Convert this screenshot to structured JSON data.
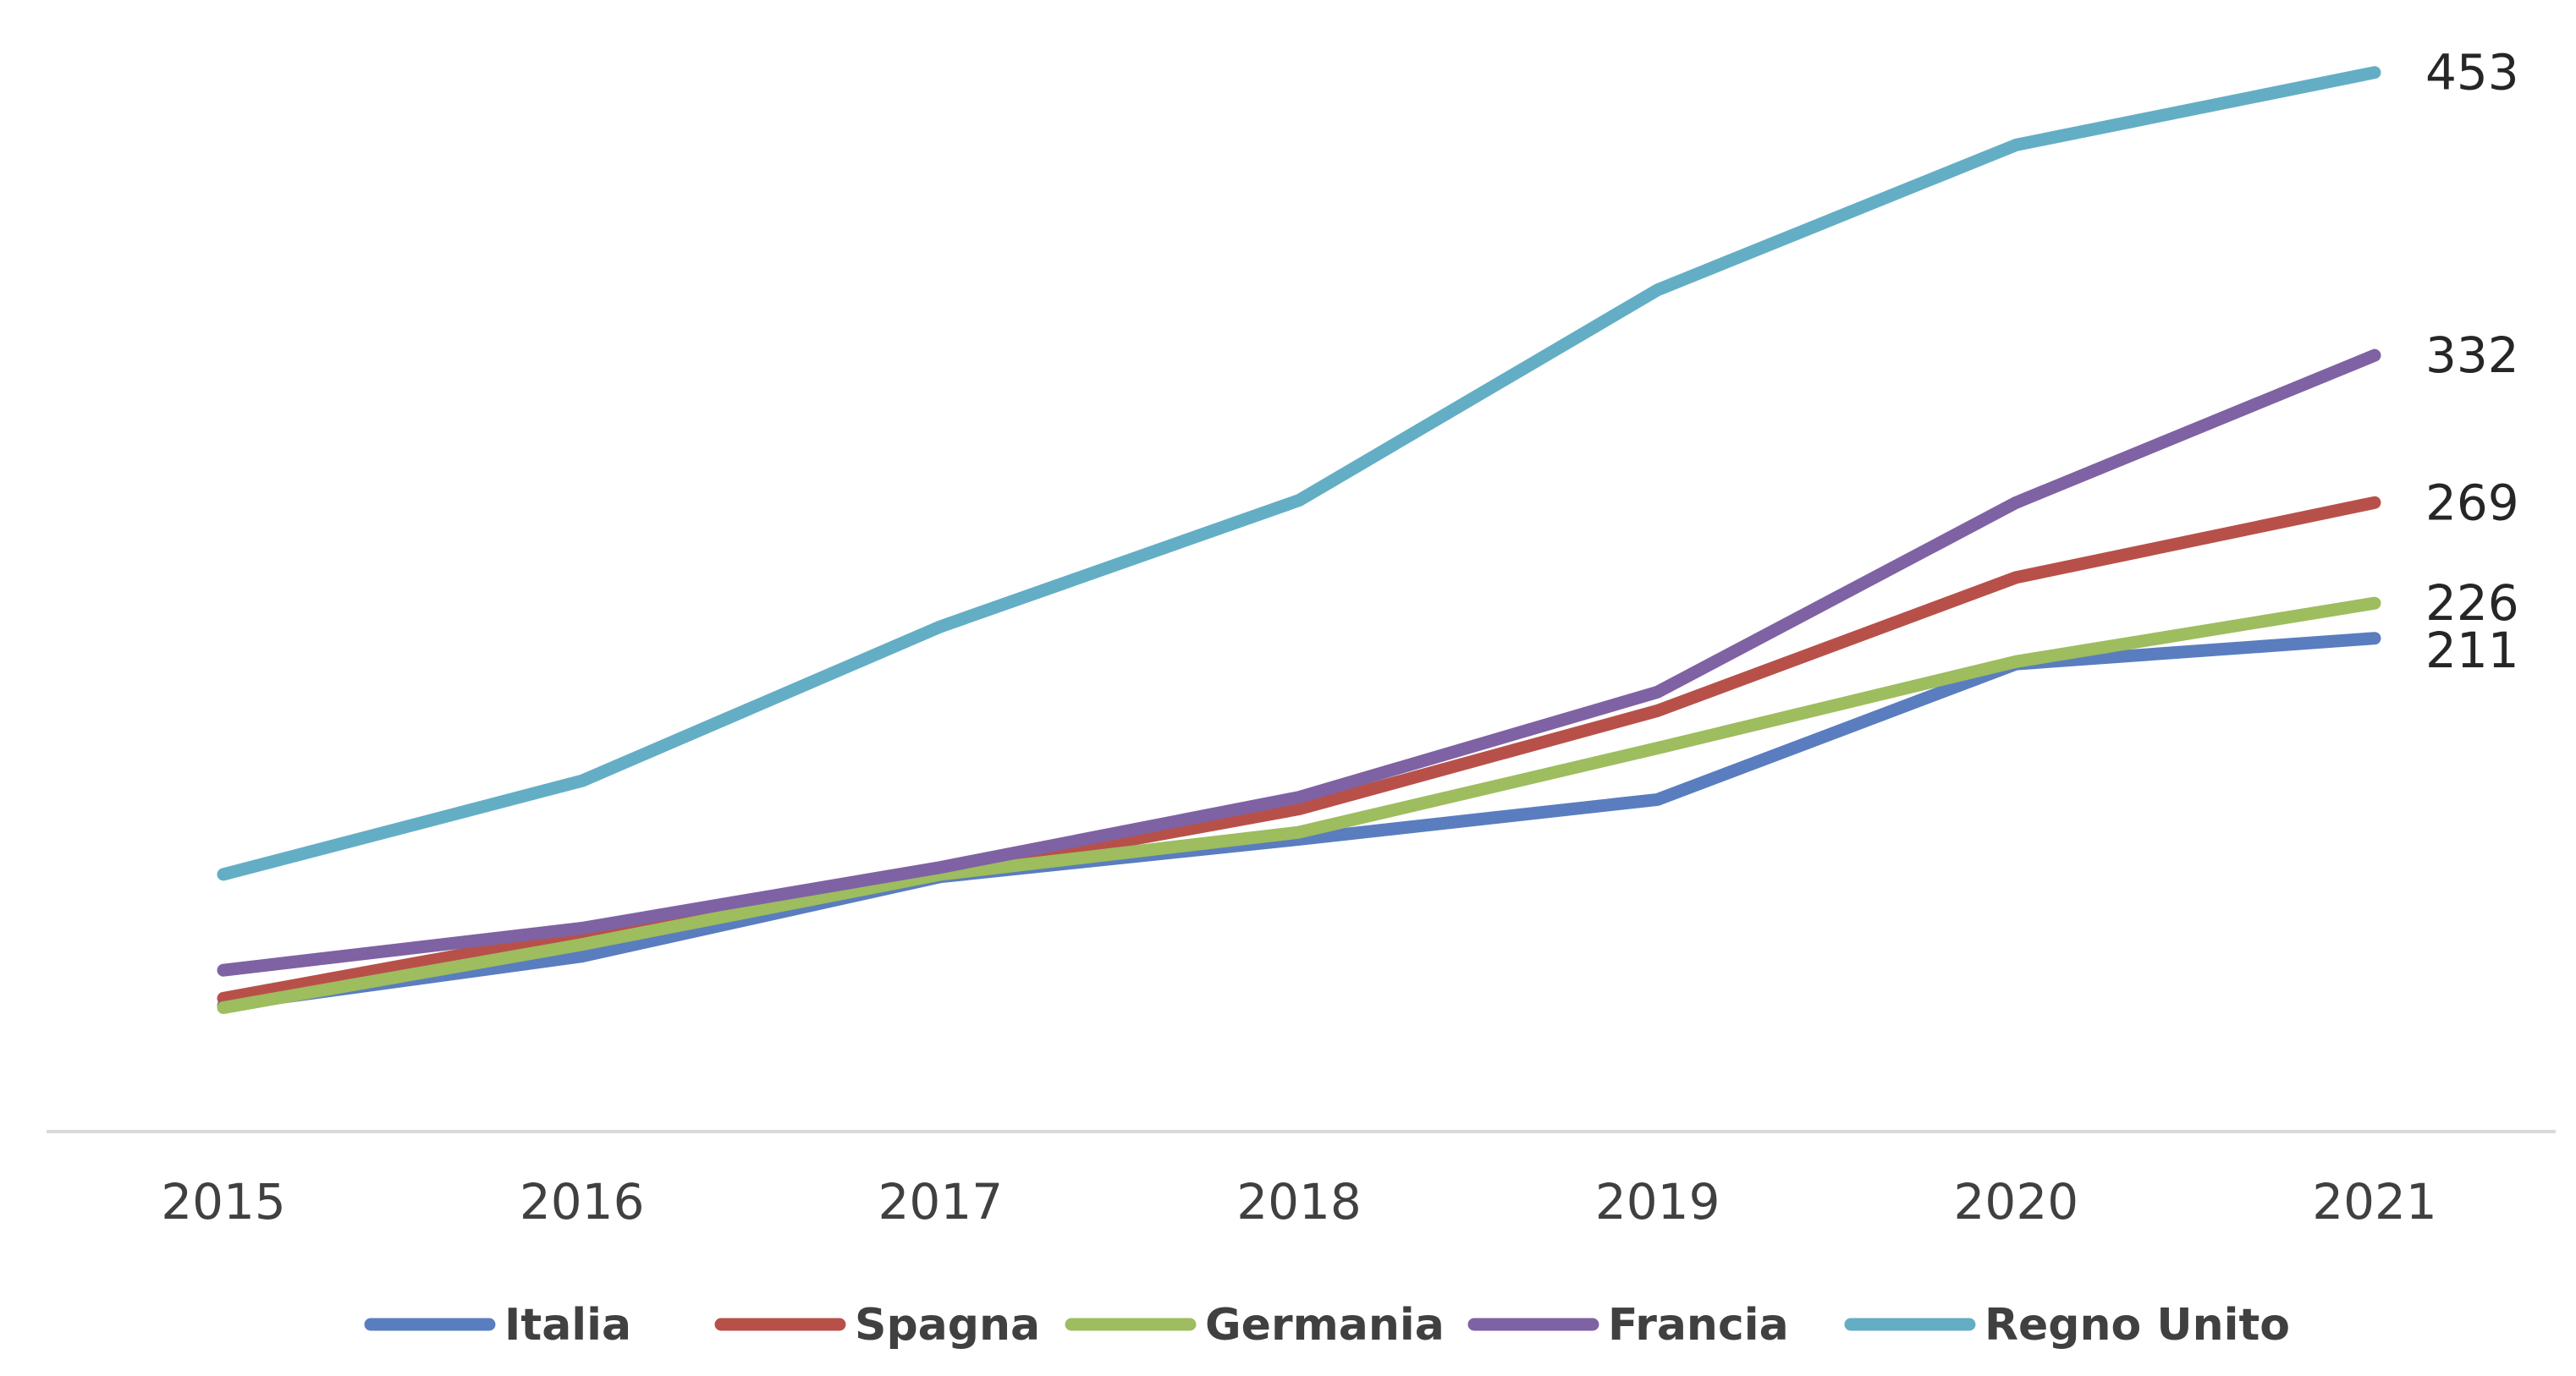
{
  "chart_data": {
    "type": "line",
    "title": "",
    "xlabel": "",
    "ylabel": "",
    "x": [
      "2015",
      "2016",
      "2017",
      "2018",
      "2019",
      "2020",
      "2021"
    ],
    "ylim": [
      0,
      500
    ],
    "y_axis_visible": false,
    "grid": false,
    "legend_position": "bottom",
    "series": [
      {
        "name": "Italia",
        "color": "#5a7dbf",
        "values": [
          54,
          75,
          109,
          125,
          142,
          200,
          211
        ],
        "end_label": "211"
      },
      {
        "name": "Spagna",
        "color": "#b8504a",
        "values": [
          57,
          85,
          110,
          138,
          180,
          237,
          269
        ],
        "end_label": "269"
      },
      {
        "name": "Germania",
        "color": "#9dbd5f",
        "values": [
          53,
          80,
          110,
          128,
          164,
          201,
          226
        ],
        "end_label": "226"
      },
      {
        "name": "Francia",
        "color": "#7f62a3",
        "values": [
          69,
          87,
          113,
          143,
          188,
          269,
          332
        ],
        "end_label": "332"
      },
      {
        "name": "Regno Unito",
        "color": "#63aec5",
        "values": [
          110,
          150,
          216,
          270,
          360,
          422,
          453
        ],
        "end_label": "453"
      }
    ]
  }
}
